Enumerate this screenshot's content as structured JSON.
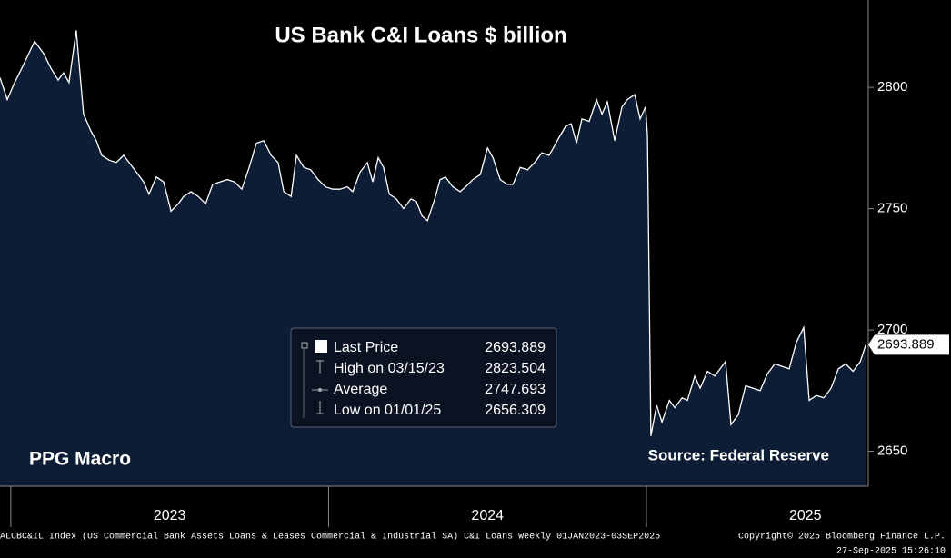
{
  "chart_data": {
    "type": "area",
    "title": "US Bank C&I Loans $ billion",
    "watermark": "PPG Macro",
    "source": "Source: Federal Reserve",
    "footer": "ALCBC&IL Index (US Commercial Bank Assets Loans & Leases Commercial & Industrial SA) C&I Loans  Weekly 01JAN2023-03SEP2025",
    "copyright": "Copyright© 2025 Bloomberg Finance L.P.",
    "timestamp": "27-Sep-2025 15:26:10",
    "x": [
      2022.966,
      2022.989,
      2023.012,
      2023.035,
      2023.075,
      2023.103,
      2023.126,
      2023.149,
      2023.166,
      2023.183,
      2023.206,
      2023.229,
      2023.252,
      2023.269,
      2023.286,
      2023.309,
      2023.332,
      2023.355,
      2023.378,
      2023.401,
      2023.418,
      2023.435,
      2023.458,
      2023.481,
      2023.504,
      2023.527,
      2023.544,
      2023.567,
      2023.59,
      2023.613,
      2023.635,
      2023.658,
      2023.681,
      2023.704,
      2023.727,
      2023.75,
      2023.773,
      2023.796,
      2023.819,
      2023.841,
      2023.859,
      2023.882,
      2023.899,
      2023.922,
      2023.944,
      2023.967,
      2023.99,
      2024.013,
      2024.036,
      2024.059,
      2024.076,
      2024.099,
      2024.122,
      2024.139,
      2024.156,
      2024.173,
      2024.191,
      2024.213,
      2024.236,
      2024.259,
      2024.276,
      2024.294,
      2024.311,
      2024.334,
      2024.351,
      2024.368,
      2024.391,
      2024.414,
      2024.431,
      2024.454,
      2024.477,
      2024.5,
      2024.517,
      2024.54,
      2024.562,
      2024.58,
      2024.603,
      2024.626,
      2024.648,
      2024.671,
      2024.694,
      2024.711,
      2024.728,
      2024.746,
      2024.763,
      2024.78,
      2024.797,
      2024.82,
      2024.843,
      2024.86,
      2024.877,
      2024.9,
      2024.923,
      2024.94,
      2024.963,
      2024.98,
      2024.997,
      2025.003,
      2025.014,
      2025.032,
      2025.049,
      2025.072,
      2025.089,
      2025.112,
      2025.129,
      2025.152,
      2025.169,
      2025.192,
      2025.215,
      2025.232,
      2025.249,
      2025.266,
      2025.289,
      2025.312,
      2025.335,
      2025.358,
      2025.381,
      2025.404,
      2025.426,
      2025.449,
      2025.472,
      2025.495,
      2025.512,
      2025.535,
      2025.558,
      2025.581,
      2025.604,
      2025.627,
      2025.65,
      2025.673,
      2025.69
    ],
    "series": [
      {
        "name": "Last Price",
        "color": "#ffffff",
        "fill": "#0d1d35",
        "values": [
          2804,
          2795,
          2802,
          2808,
          2819,
          2814,
          2808,
          2803,
          2806,
          2802,
          2823.504,
          2789,
          2782,
          2778,
          2772,
          2770,
          2769,
          2772,
          2768,
          2764,
          2761,
          2756,
          2763,
          2761,
          2749,
          2752,
          2755,
          2757,
          2755,
          2752,
          2760,
          2761,
          2762,
          2761,
          2758,
          2767,
          2777,
          2778,
          2772,
          2769,
          2757,
          2755,
          2772,
          2767,
          2766,
          2762,
          2759,
          2758,
          2758,
          2759,
          2757,
          2765,
          2769,
          2761,
          2771,
          2767,
          2756,
          2754,
          2750,
          2754,
          2753,
          2747,
          2745,
          2754,
          2762,
          2763,
          2759,
          2757,
          2759,
          2762,
          2764,
          2775,
          2771,
          2762,
          2760,
          2760,
          2767,
          2766,
          2769,
          2773,
          2772,
          2776,
          2780,
          2784,
          2785,
          2777,
          2787,
          2786,
          2795,
          2789,
          2794,
          2778,
          2792,
          2795,
          2797,
          2787,
          2792,
          2780,
          2656.309,
          2669,
          2662,
          2671,
          2668,
          2672,
          2671,
          2681,
          2676,
          2683,
          2681,
          2684,
          2687,
          2661,
          2665,
          2677,
          2676,
          2675,
          2682,
          2686,
          2685,
          2684,
          2695,
          2701,
          2671,
          2673,
          2672,
          2676,
          2684,
          2686,
          2683,
          2687,
          2693.889
        ]
      }
    ],
    "legend_stats": [
      {
        "label": "High on 03/15/23",
        "value": 2823.504
      },
      {
        "label": "Average",
        "value": 2747.693
      },
      {
        "label": "Low on 01/01/25",
        "value": 2656.309
      }
    ],
    "xlim": [
      2022.966,
      2025.698
    ],
    "xticks": [
      {
        "value": 2023.5,
        "label": "2023"
      },
      {
        "value": 2024.5,
        "label": "2024"
      },
      {
        "value": 2025.5,
        "label": "2025"
      }
    ],
    "ylim": [
      2635.6,
      2836
    ],
    "yticks": [
      2650,
      2700,
      2750,
      2800
    ]
  }
}
